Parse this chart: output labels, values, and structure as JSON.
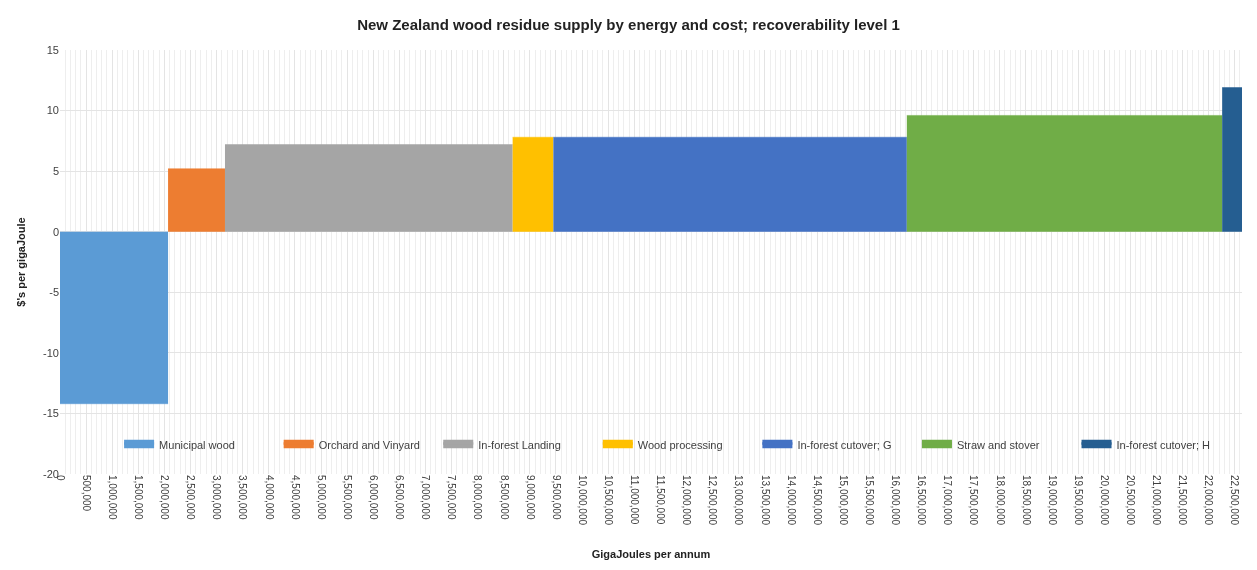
{
  "chart_data": {
    "type": "area",
    "title": "New Zealand wood residue supply by energy and cost; recoverability level 1",
    "xlabel": "GigaJoules per annum",
    "ylabel": "$'s per gigaJoule",
    "series": [
      {
        "name": "Municipal wood",
        "color": "#5b9bd5",
        "x": [
          0,
          2070000
        ],
        "values": [
          -14.2,
          -14.2
        ]
      },
      {
        "name": "Orchard and Vinyard",
        "color": "#ed7d31",
        "x": [
          2070000,
          3160000
        ],
        "values": [
          5.2,
          5.2
        ]
      },
      {
        "name": "In-forest Landing",
        "color": "#a5a5a5",
        "x": [
          3160000,
          8670000
        ],
        "values": [
          7.2,
          7.2
        ]
      },
      {
        "name": "Wood processing",
        "color": "#ffc000",
        "x": [
          8670000,
          9450000
        ],
        "values": [
          7.8,
          7.8
        ]
      },
      {
        "name": "In-forest cutover; G",
        "color": "#4472c4",
        "x": [
          9450000,
          16220000
        ],
        "values": [
          7.8,
          7.8
        ]
      },
      {
        "name": "Straw and stover",
        "color": "#70ad47",
        "x": [
          16220000,
          22260000
        ],
        "values": [
          9.6,
          9.6
        ]
      },
      {
        "name": "In-forest cutover; H",
        "color": "#255e91",
        "x": [
          22260000,
          22640000
        ],
        "values": [
          11.9,
          11.9
        ]
      }
    ],
    "xlim": [
      0,
      22640000
    ],
    "xticks": [
      0,
      {
        "value": 500000,
        "label": "500,000"
      },
      {
        "value": 1000000,
        "label": "1,000,000"
      },
      {
        "value": 1500000,
        "label": "1,500,000"
      },
      {
        "value": 2000000,
        "label": "2,000,000"
      },
      {
        "value": 2500000,
        "label": "2,500,000"
      },
      {
        "value": 3000000,
        "label": "3,000,000"
      },
      {
        "value": 3500000,
        "label": "3,500,000"
      },
      {
        "value": 4000000,
        "label": "4,000,000"
      },
      {
        "value": 4500000,
        "label": "4,500,000"
      },
      {
        "value": 5000000,
        "label": "5,000,000"
      },
      {
        "value": 5500000,
        "label": "5,500,000"
      },
      {
        "value": 6000000,
        "label": "6,000,000"
      },
      {
        "value": 6500000,
        "label": "6,500,000"
      },
      {
        "value": 7000000,
        "label": "7,000,000"
      },
      {
        "value": 7500000,
        "label": "7,500,000"
      },
      {
        "value": 8000000,
        "label": "8,000,000"
      },
      {
        "value": 8500000,
        "label": "8,500,000"
      },
      {
        "value": 9000000,
        "label": "9,000,000"
      },
      {
        "value": 9500000,
        "label": "9,500,000"
      },
      {
        "value": 10000000,
        "label": "10,000,000"
      },
      {
        "value": 10500000,
        "label": "10,500,000"
      },
      {
        "value": 11000000,
        "label": "11,000,000"
      },
      {
        "value": 11500000,
        "label": "11,500,000"
      },
      {
        "value": 12000000,
        "label": "12,000,000"
      },
      {
        "value": 12500000,
        "label": "12,500,000"
      },
      {
        "value": 13000000,
        "label": "13,000,000"
      },
      {
        "value": 13500000,
        "label": "13,500,000"
      },
      {
        "value": 14000000,
        "label": "14,000,000"
      },
      {
        "value": 14500000,
        "label": "14,500,000"
      },
      {
        "value": 15000000,
        "label": "15,000,000"
      },
      {
        "value": 15500000,
        "label": "15,500,000"
      },
      {
        "value": 16000000,
        "label": "16,000,000"
      },
      {
        "value": 16500000,
        "label": "16,500,000"
      },
      {
        "value": 17000000,
        "label": "17,000,000"
      },
      {
        "value": 17500000,
        "label": "17,500,000"
      },
      {
        "value": 18000000,
        "label": "18,000,000"
      },
      {
        "value": 18500000,
        "label": "18,500,000"
      },
      {
        "value": 19000000,
        "label": "19,000,000"
      },
      {
        "value": 19500000,
        "label": "19,500,000"
      },
      {
        "value": 20000000,
        "label": "20,000,000"
      },
      {
        "value": 20500000,
        "label": "20,500,000"
      },
      {
        "value": 21000000,
        "label": "21,000,000"
      },
      {
        "value": 21500000,
        "label": "21,500,000"
      },
      {
        "value": 22000000,
        "label": "22,000,000"
      },
      {
        "value": 22500000,
        "label": "22,500,000"
      }
    ],
    "ylim": [
      -20,
      15
    ],
    "yticks": [
      -20,
      -15,
      -10,
      -5,
      0,
      5,
      10,
      15
    ],
    "grid": true,
    "legend": "bottom",
    "marker": "none"
  }
}
